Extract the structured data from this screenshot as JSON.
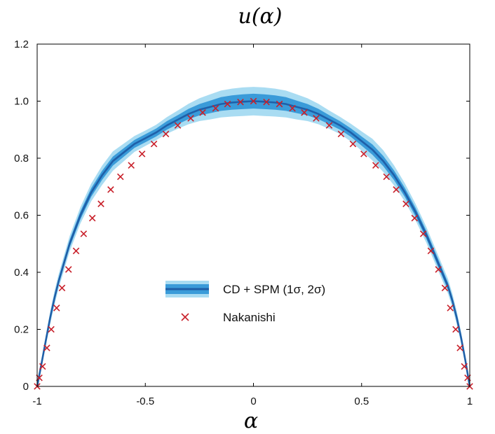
{
  "chart_data": {
    "type": "line",
    "title": "u(α)",
    "xlabel": "α",
    "ylabel": "",
    "xlim": [
      -1,
      1
    ],
    "ylim": [
      0,
      1.2
    ],
    "x_ticks": [
      {
        "value": -1,
        "label": "-1"
      },
      {
        "value": -0.5,
        "label": "-0.5"
      },
      {
        "value": 0,
        "label": "0"
      },
      {
        "value": 0.5,
        "label": "0.5"
      },
      {
        "value": 1,
        "label": "1"
      }
    ],
    "y_ticks": [
      {
        "value": 0,
        "label": "0"
      },
      {
        "value": 0.2,
        "label": "0.2"
      },
      {
        "value": 0.4,
        "label": "0.4"
      },
      {
        "value": 0.6,
        "label": "0.6"
      },
      {
        "value": 0.8,
        "label": "0.8"
      },
      {
        "value": 1.0,
        "label": "1.0"
      },
      {
        "value": 1.2,
        "label": "1.2"
      }
    ],
    "grid": false,
    "legend": {
      "position": "center-right",
      "entries": [
        {
          "label": "CD + SPM (1σ, 2σ)",
          "kind": "band"
        },
        {
          "label": "Nakanishi",
          "kind": "marker"
        }
      ]
    },
    "colors": {
      "line": "#1f5fa8",
      "band_1sigma": "#3a9bd9",
      "band_2sigma": "#a9dcf2",
      "marker": "#c8202a",
      "axes": "#000000"
    },
    "series": [
      {
        "name": "CD + SPM (1σ, 2σ)",
        "kind": "band-line",
        "x": [
          -1.0,
          -0.98,
          -0.96,
          -0.94,
          -0.92,
          -0.9,
          -0.85,
          -0.8,
          -0.75,
          -0.7,
          -0.65,
          -0.6,
          -0.55,
          -0.5,
          -0.45,
          -0.4,
          -0.35,
          -0.3,
          -0.25,
          -0.2,
          -0.15,
          -0.1,
          -0.05,
          0.0,
          0.05,
          0.1,
          0.15,
          0.2,
          0.25,
          0.3,
          0.35,
          0.4,
          0.45,
          0.5,
          0.55,
          0.6,
          0.65,
          0.7,
          0.75,
          0.8,
          0.85,
          0.9,
          0.92,
          0.94,
          0.96,
          0.98,
          1.0
        ],
        "y": [
          0.0,
          0.08,
          0.16,
          0.24,
          0.31,
          0.37,
          0.5,
          0.6,
          0.68,
          0.74,
          0.79,
          0.82,
          0.85,
          0.87,
          0.89,
          0.915,
          0.935,
          0.955,
          0.97,
          0.98,
          0.99,
          0.995,
          0.998,
          1.0,
          0.998,
          0.995,
          0.99,
          0.98,
          0.97,
          0.955,
          0.935,
          0.915,
          0.89,
          0.86,
          0.83,
          0.79,
          0.74,
          0.68,
          0.61,
          0.53,
          0.44,
          0.35,
          0.3,
          0.24,
          0.17,
          0.09,
          0.0
        ],
        "sigma1": [
          0.0,
          0.008,
          0.01,
          0.012,
          0.012,
          0.012,
          0.013,
          0.014,
          0.015,
          0.016,
          0.016,
          0.015,
          0.014,
          0.014,
          0.014,
          0.015,
          0.016,
          0.018,
          0.02,
          0.022,
          0.024,
          0.025,
          0.026,
          0.026,
          0.026,
          0.025,
          0.024,
          0.022,
          0.02,
          0.018,
          0.016,
          0.015,
          0.015,
          0.016,
          0.018,
          0.018,
          0.017,
          0.016,
          0.015,
          0.014,
          0.014,
          0.013,
          0.013,
          0.012,
          0.011,
          0.008,
          0.0
        ],
        "sigma2": [
          0.0,
          0.014,
          0.018,
          0.022,
          0.024,
          0.025,
          0.027,
          0.029,
          0.031,
          0.034,
          0.034,
          0.031,
          0.028,
          0.027,
          0.027,
          0.029,
          0.032,
          0.036,
          0.04,
          0.044,
          0.047,
          0.049,
          0.05,
          0.05,
          0.05,
          0.049,
          0.047,
          0.044,
          0.04,
          0.036,
          0.032,
          0.03,
          0.031,
          0.034,
          0.038,
          0.038,
          0.035,
          0.032,
          0.029,
          0.028,
          0.027,
          0.026,
          0.025,
          0.023,
          0.02,
          0.015,
          0.0
        ]
      },
      {
        "name": "Nakanishi",
        "kind": "scatter",
        "x": [
          -1.0,
          -0.99,
          -0.975,
          -0.955,
          -0.935,
          -0.91,
          -0.885,
          -0.855,
          -0.82,
          -0.785,
          -0.745,
          -0.705,
          -0.66,
          -0.615,
          -0.565,
          -0.515,
          -0.46,
          -0.405,
          -0.35,
          -0.29,
          -0.235,
          -0.175,
          -0.12,
          -0.06,
          0.0,
          0.06,
          0.12,
          0.18,
          0.235,
          0.29,
          0.35,
          0.405,
          0.46,
          0.51,
          0.565,
          0.615,
          0.66,
          0.705,
          0.745,
          0.785,
          0.82,
          0.855,
          0.885,
          0.91,
          0.935,
          0.955,
          0.975,
          0.99,
          1.0
        ],
        "y": [
          0.0,
          0.03,
          0.07,
          0.135,
          0.2,
          0.275,
          0.345,
          0.41,
          0.475,
          0.535,
          0.59,
          0.64,
          0.69,
          0.735,
          0.775,
          0.815,
          0.85,
          0.885,
          0.915,
          0.94,
          0.96,
          0.975,
          0.99,
          0.997,
          1.0,
          0.997,
          0.99,
          0.975,
          0.96,
          0.94,
          0.915,
          0.885,
          0.85,
          0.815,
          0.775,
          0.735,
          0.69,
          0.64,
          0.59,
          0.535,
          0.475,
          0.41,
          0.345,
          0.275,
          0.2,
          0.135,
          0.07,
          0.03,
          0.0
        ]
      }
    ]
  }
}
